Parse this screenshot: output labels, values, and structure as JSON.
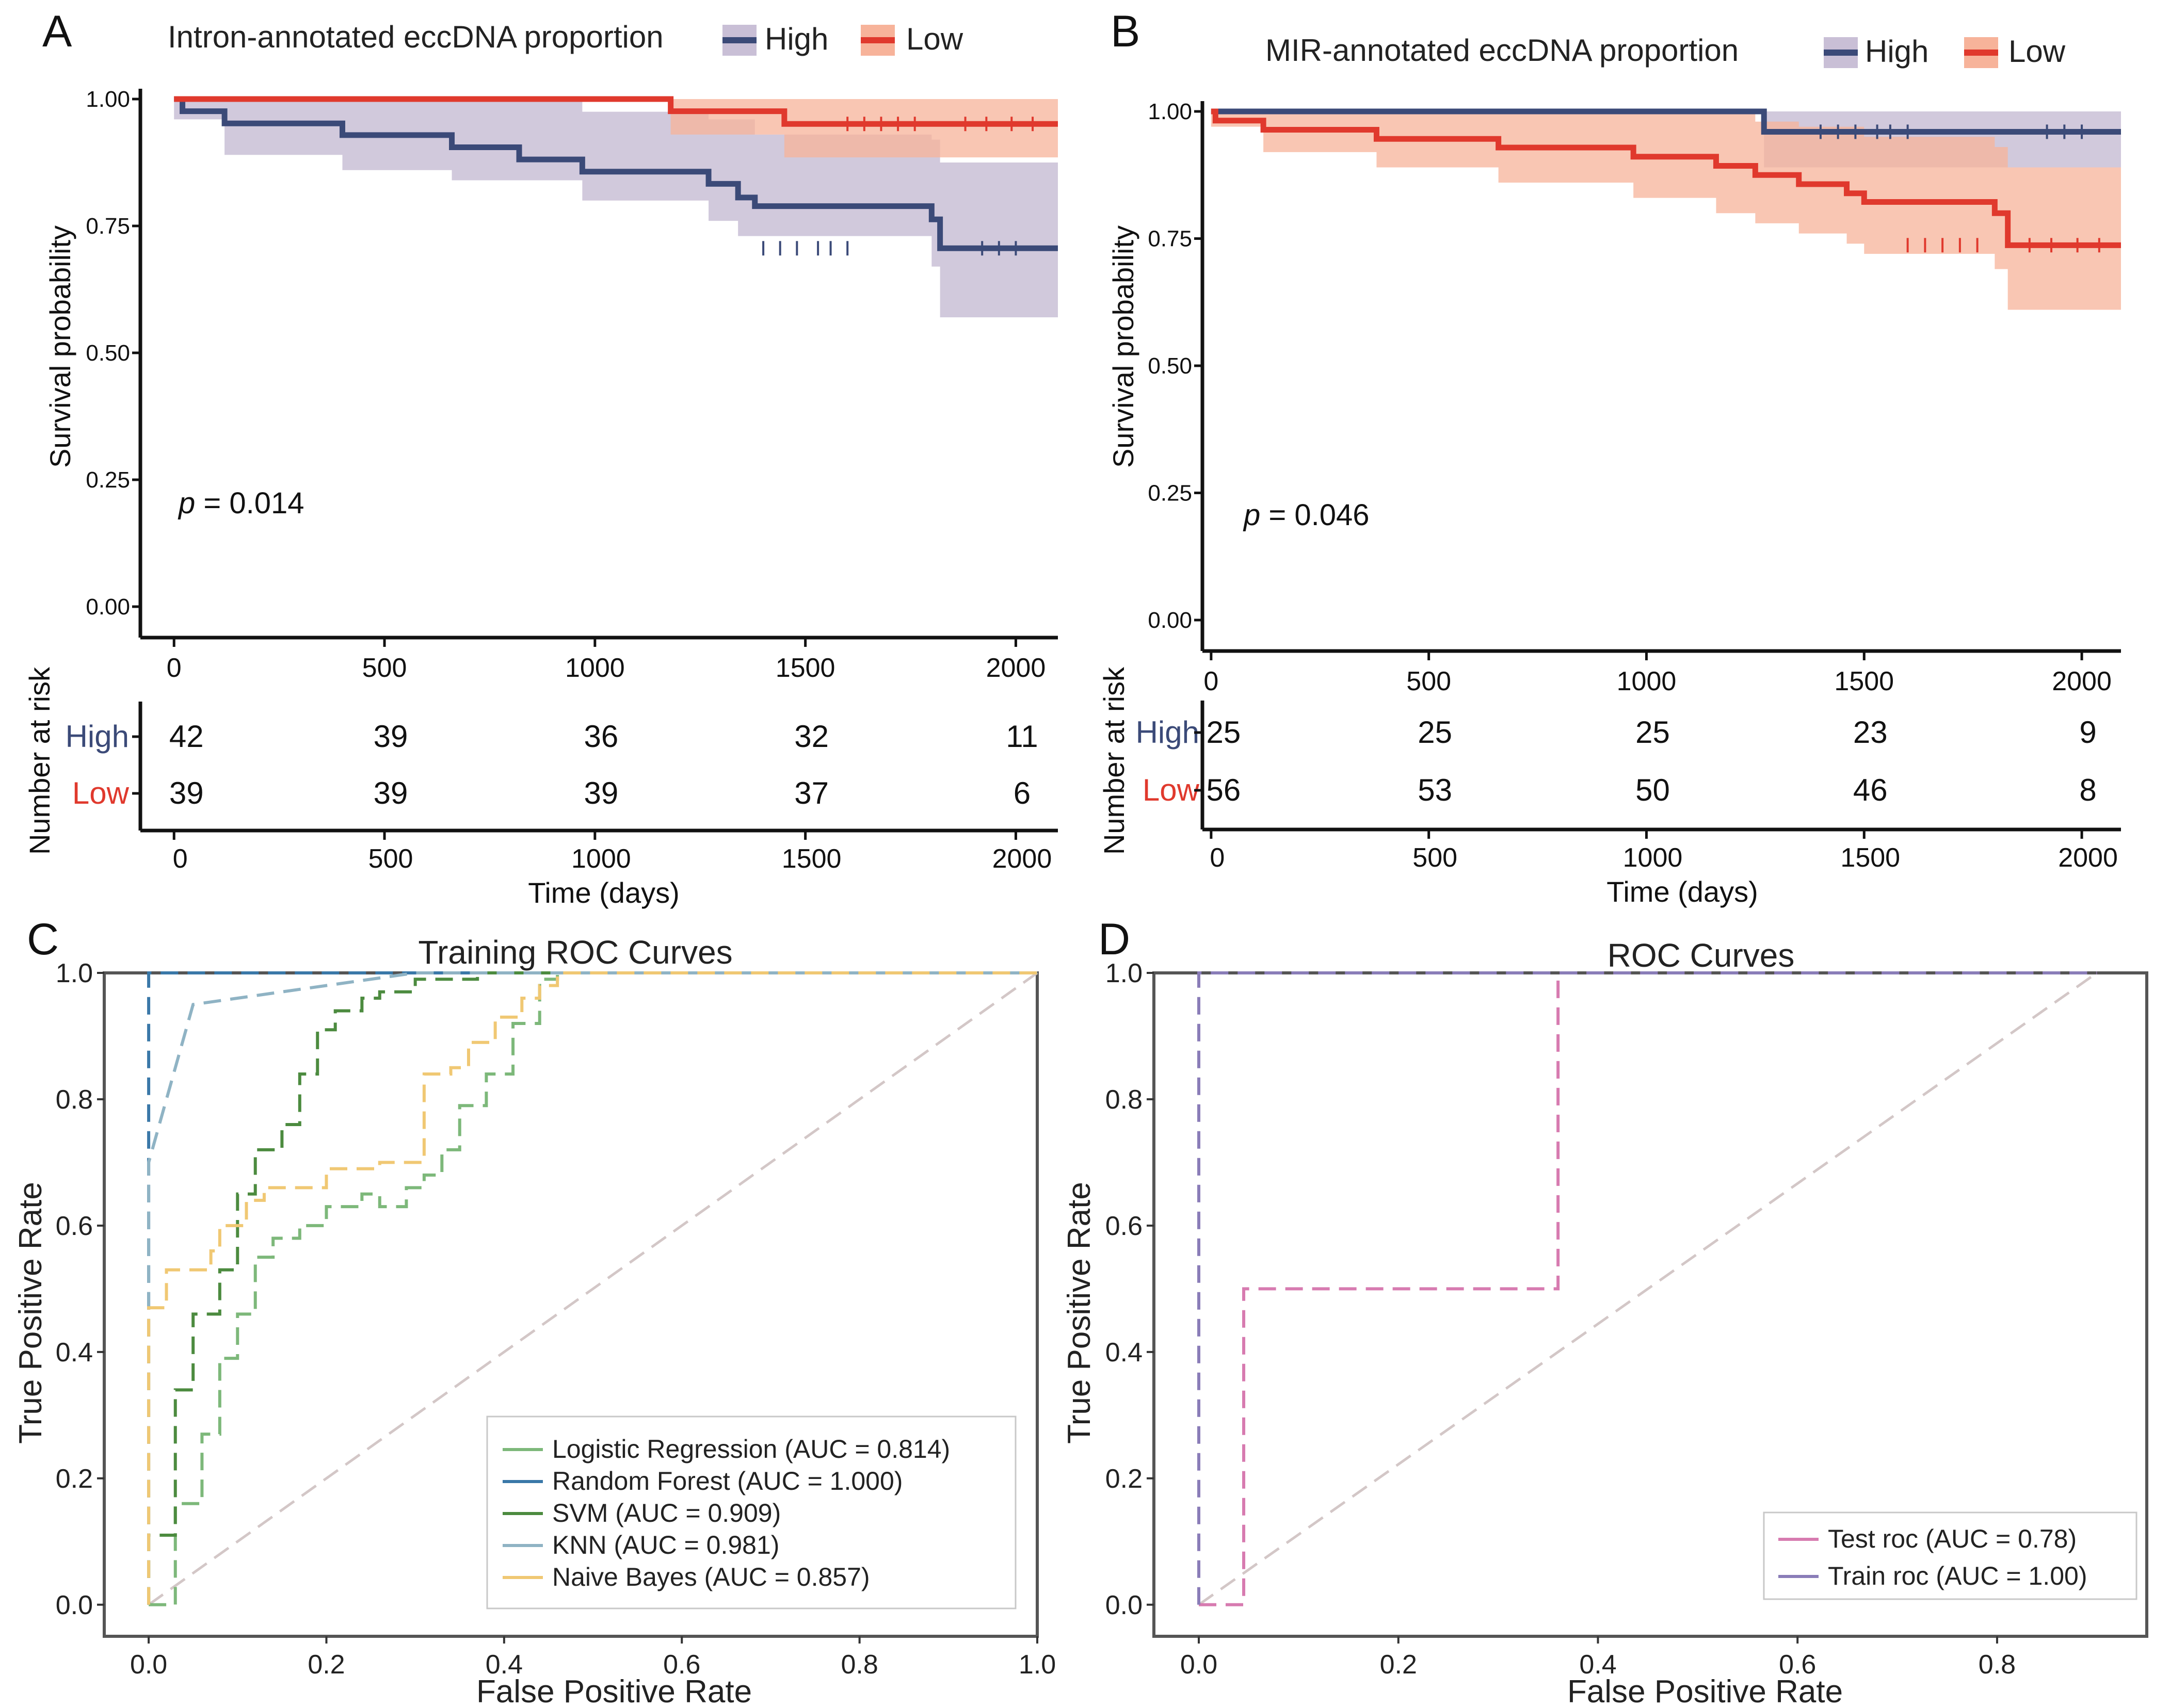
{
  "figure": {
    "panels": [
      "A",
      "B",
      "C",
      "D"
    ]
  },
  "chart_data": [
    {
      "id": "A",
      "type": "line",
      "subtype": "kaplan-meier",
      "title": "Intron-annotated eccDNA proportion",
      "ylabel": "Survival probability",
      "xlabel": "Time (days)",
      "xlim": [
        -80,
        2100
      ],
      "ylim": [
        0,
        1
      ],
      "xticks": [
        "0",
        "500",
        "1000",
        "1500",
        "2000"
      ],
      "yticks": [
        "0.00",
        "0.25",
        "0.50",
        "0.75",
        "1.00"
      ],
      "pvalue_label": "p",
      "pvalue_text": " = 0.014",
      "risk_title": "Number at risk",
      "series": [
        {
          "name": "High",
          "color": "#3b4a78",
          "band": "#c9bfd6",
          "steps": [
            [
              0,
              1.0
            ],
            [
              20,
              0.976
            ],
            [
              120,
              0.952
            ],
            [
              400,
              0.929
            ],
            [
              660,
              0.905
            ],
            [
              820,
              0.881
            ],
            [
              970,
              0.857
            ],
            [
              1270,
              0.833
            ],
            [
              1340,
              0.806
            ],
            [
              1380,
              0.789
            ],
            [
              1800,
              0.763
            ],
            [
              1820,
              0.706
            ],
            [
              2100,
              0.706
            ]
          ],
          "lower": [
            [
              0,
              0.96
            ],
            [
              120,
              0.89
            ],
            [
              400,
              0.86
            ],
            [
              660,
              0.84
            ],
            [
              970,
              0.8
            ],
            [
              1270,
              0.76
            ],
            [
              1340,
              0.73
            ],
            [
              1800,
              0.67
            ],
            [
              1820,
              0.57
            ],
            [
              2100,
              0.57
            ]
          ],
          "upper": [
            [
              0,
              1.0
            ],
            [
              820,
              1.0
            ],
            [
              970,
              0.975
            ],
            [
              1270,
              0.96
            ],
            [
              1380,
              0.93
            ],
            [
              1800,
              0.92
            ],
            [
              1820,
              0.875
            ],
            [
              2100,
              0.875
            ]
          ],
          "risk": [
            42,
            39,
            36,
            32,
            11
          ]
        },
        {
          "name": "Low",
          "color": "#e0392d",
          "band": "#f7b39a",
          "steps": [
            [
              0,
              1.0
            ],
            [
              1180,
              1.0
            ],
            [
              1180,
              0.976
            ],
            [
              1450,
              0.976
            ],
            [
              1450,
              0.951
            ],
            [
              2100,
              0.951
            ]
          ],
          "lower": [
            [
              0,
              1.0
            ],
            [
              1180,
              1.0
            ],
            [
              1180,
              0.93
            ],
            [
              1450,
              0.93
            ],
            [
              1450,
              0.885
            ],
            [
              2100,
              0.885
            ]
          ],
          "upper": [
            [
              0,
              1.0
            ],
            [
              2100,
              1.0
            ]
          ],
          "risk": [
            39,
            39,
            39,
            37,
            6
          ]
        }
      ]
    },
    {
      "id": "B",
      "type": "line",
      "subtype": "kaplan-meier",
      "title": "MIR-annotated eccDNA proportion",
      "ylabel": "Survival probability",
      "xlabel": "Time (days)",
      "xlim": [
        -20,
        2090
      ],
      "ylim": [
        0,
        1
      ],
      "xticks": [
        "0",
        "500",
        "1000",
        "1500",
        "2000"
      ],
      "yticks": [
        "0.00",
        "0.25",
        "0.50",
        "0.75",
        "1.00"
      ],
      "pvalue_label": "p",
      "pvalue_text": " = 0.046",
      "risk_title": "Number at risk",
      "series": [
        {
          "name": "High",
          "color": "#3b4a78",
          "band": "#c9bfd6",
          "steps": [
            [
              0,
              1.0
            ],
            [
              1270,
              1.0
            ],
            [
              1270,
              0.96
            ],
            [
              2090,
              0.96
            ]
          ],
          "lower": [
            [
              0,
              1.0
            ],
            [
              1270,
              1.0
            ],
            [
              1270,
              0.89
            ],
            [
              2090,
              0.89
            ]
          ],
          "upper": [
            [
              0,
              1.0
            ],
            [
              2090,
              1.0
            ]
          ],
          "risk": [
            25,
            25,
            25,
            23,
            9
          ]
        },
        {
          "name": "Low",
          "color": "#e0392d",
          "band": "#f7b39a",
          "steps": [
            [
              0,
              1.0
            ],
            [
              10,
              0.982
            ],
            [
              120,
              0.964
            ],
            [
              380,
              0.946
            ],
            [
              660,
              0.929
            ],
            [
              970,
              0.911
            ],
            [
              1160,
              0.893
            ],
            [
              1250,
              0.875
            ],
            [
              1350,
              0.857
            ],
            [
              1460,
              0.839
            ],
            [
              1500,
              0.822
            ],
            [
              1800,
              0.8
            ],
            [
              1830,
              0.737
            ],
            [
              2090,
              0.737
            ]
          ],
          "lower": [
            [
              0,
              0.97
            ],
            [
              120,
              0.92
            ],
            [
              380,
              0.89
            ],
            [
              660,
              0.86
            ],
            [
              970,
              0.83
            ],
            [
              1160,
              0.8
            ],
            [
              1250,
              0.78
            ],
            [
              1350,
              0.76
            ],
            [
              1460,
              0.74
            ],
            [
              1500,
              0.72
            ],
            [
              1800,
              0.69
            ],
            [
              1830,
              0.61
            ],
            [
              2090,
              0.61
            ]
          ],
          "upper": [
            [
              0,
              1.0
            ],
            [
              1160,
              1.0
            ],
            [
              1250,
              0.98
            ],
            [
              1350,
              0.97
            ],
            [
              1500,
              0.95
            ],
            [
              1800,
              0.93
            ],
            [
              1830,
              0.89
            ],
            [
              2090,
              0.89
            ]
          ],
          "risk": [
            56,
            53,
            50,
            46,
            8
          ]
        }
      ]
    },
    {
      "id": "C",
      "type": "line",
      "subtype": "roc",
      "title": "Training ROC Curves",
      "xlabel": "False Positive Rate",
      "ylabel": "True Positive Rate",
      "xlim": [
        -0.05,
        1.0
      ],
      "ylim": [
        -0.05,
        1.0
      ],
      "xticks": [
        "0.0",
        "0.2",
        "0.4",
        "0.6",
        "0.8",
        "1.0"
      ],
      "yticks": [
        "0.0",
        "0.2",
        "0.4",
        "0.6",
        "0.8",
        "1.0"
      ],
      "series": [
        {
          "name": "Logistic Regression (AUC = 0.814)",
          "color": "#7db87a",
          "points": [
            [
              0,
              0
            ],
            [
              0.03,
              0
            ],
            [
              0.03,
              0.16
            ],
            [
              0.06,
              0.16
            ],
            [
              0.06,
              0.27
            ],
            [
              0.08,
              0.27
            ],
            [
              0.08,
              0.39
            ],
            [
              0.1,
              0.39
            ],
            [
              0.1,
              0.46
            ],
            [
              0.12,
              0.46
            ],
            [
              0.12,
              0.55
            ],
            [
              0.14,
              0.55
            ],
            [
              0.14,
              0.58
            ],
            [
              0.17,
              0.58
            ],
            [
              0.17,
              0.6
            ],
            [
              0.2,
              0.6
            ],
            [
              0.2,
              0.63
            ],
            [
              0.24,
              0.63
            ],
            [
              0.24,
              0.65
            ],
            [
              0.26,
              0.65
            ],
            [
              0.26,
              0.63
            ],
            [
              0.29,
              0.63
            ],
            [
              0.29,
              0.66
            ],
            [
              0.31,
              0.66
            ],
            [
              0.31,
              0.68
            ],
            [
              0.33,
              0.68
            ],
            [
              0.33,
              0.72
            ],
            [
              0.35,
              0.72
            ],
            [
              0.35,
              0.79
            ],
            [
              0.38,
              0.79
            ],
            [
              0.38,
              0.84
            ],
            [
              0.41,
              0.84
            ],
            [
              0.41,
              0.92
            ],
            [
              0.44,
              0.92
            ],
            [
              0.44,
              0.99
            ],
            [
              0.46,
              0.99
            ],
            [
              0.46,
              1.0
            ],
            [
              1.0,
              1.0
            ]
          ]
        },
        {
          "name": "Random Forest (AUC = 1.000)",
          "color": "#3a78a8",
          "points": [
            [
              0,
              0
            ],
            [
              0,
              1.0
            ],
            [
              1.0,
              1.0
            ]
          ]
        },
        {
          "name": "SVM (AUC = 0.909)",
          "color": "#4c8b3f",
          "points": [
            [
              0,
              0
            ],
            [
              0,
              0.11
            ],
            [
              0.03,
              0.11
            ],
            [
              0.03,
              0.34
            ],
            [
              0.05,
              0.34
            ],
            [
              0.05,
              0.46
            ],
            [
              0.08,
              0.46
            ],
            [
              0.08,
              0.53
            ],
            [
              0.1,
              0.53
            ],
            [
              0.1,
              0.65
            ],
            [
              0.12,
              0.65
            ],
            [
              0.12,
              0.72
            ],
            [
              0.15,
              0.72
            ],
            [
              0.15,
              0.76
            ],
            [
              0.17,
              0.76
            ],
            [
              0.17,
              0.84
            ],
            [
              0.19,
              0.84
            ],
            [
              0.19,
              0.91
            ],
            [
              0.21,
              0.91
            ],
            [
              0.21,
              0.94
            ],
            [
              0.24,
              0.94
            ],
            [
              0.24,
              0.96
            ],
            [
              0.26,
              0.96
            ],
            [
              0.26,
              0.97
            ],
            [
              0.3,
              0.97
            ],
            [
              0.3,
              0.99
            ],
            [
              0.37,
              0.99
            ],
            [
              0.37,
              1.0
            ],
            [
              1.0,
              1.0
            ]
          ]
        },
        {
          "name": "KNN (AUC = 0.981)",
          "color": "#8fb3c4",
          "points": [
            [
              0,
              0
            ],
            [
              0,
              0.7
            ],
            [
              0.05,
              0.95
            ],
            [
              0.3,
              1.0
            ],
            [
              1.0,
              1.0
            ]
          ]
        },
        {
          "name": "Naive Bayes (AUC = 0.857)",
          "color": "#f0c873",
          "points": [
            [
              0,
              0
            ],
            [
              0,
              0.47
            ],
            [
              0.02,
              0.47
            ],
            [
              0.02,
              0.53
            ],
            [
              0.07,
              0.53
            ],
            [
              0.07,
              0.56
            ],
            [
              0.08,
              0.56
            ],
            [
              0.08,
              0.6
            ],
            [
              0.11,
              0.6
            ],
            [
              0.11,
              0.64
            ],
            [
              0.13,
              0.64
            ],
            [
              0.13,
              0.66
            ],
            [
              0.2,
              0.66
            ],
            [
              0.2,
              0.69
            ],
            [
              0.26,
              0.69
            ],
            [
              0.26,
              0.7
            ],
            [
              0.31,
              0.7
            ],
            [
              0.31,
              0.84
            ],
            [
              0.34,
              0.84
            ],
            [
              0.34,
              0.85
            ],
            [
              0.36,
              0.85
            ],
            [
              0.36,
              0.89
            ],
            [
              0.39,
              0.89
            ],
            [
              0.39,
              0.93
            ],
            [
              0.42,
              0.93
            ],
            [
              0.42,
              0.96
            ],
            [
              0.44,
              0.96
            ],
            [
              0.44,
              0.98
            ],
            [
              0.46,
              0.98
            ],
            [
              0.46,
              1.0
            ],
            [
              1.0,
              1.0
            ]
          ]
        },
        {
          "name": "",
          "color": "#d3c7c7",
          "points": [
            [
              0,
              0
            ],
            [
              1.0,
              1.0
            ]
          ]
        }
      ]
    },
    {
      "id": "D",
      "type": "line",
      "subtype": "roc",
      "title": "ROC Curves",
      "xlabel": "False Positive Rate",
      "ylabel": "True Positive Rate",
      "xlim": [
        -0.045,
        0.95
      ],
      "ylim": [
        -0.05,
        1.0
      ],
      "xticks": [
        "0.0",
        "0.2",
        "0.4",
        "0.6",
        "0.8"
      ],
      "yticks": [
        "0.0",
        "0.2",
        "0.4",
        "0.6",
        "0.8",
        "1.0"
      ],
      "series": [
        {
          "name": "Test roc (AUC = 0.78)",
          "color": "#d77bb0",
          "points": [
            [
              0,
              0
            ],
            [
              0.045,
              0
            ],
            [
              0.045,
              0.5
            ],
            [
              0.36,
              0.5
            ],
            [
              0.36,
              1.0
            ],
            [
              0.9,
              1.0
            ]
          ]
        },
        {
          "name": "Train roc (AUC = 1.00)",
          "color": "#8a7db8",
          "points": [
            [
              0,
              0
            ],
            [
              0,
              1.0
            ],
            [
              0.9,
              1.0
            ]
          ]
        },
        {
          "name": "",
          "color": "#d3c7c7",
          "points": [
            [
              0,
              0
            ],
            [
              0.9,
              1.0
            ]
          ]
        }
      ]
    }
  ]
}
